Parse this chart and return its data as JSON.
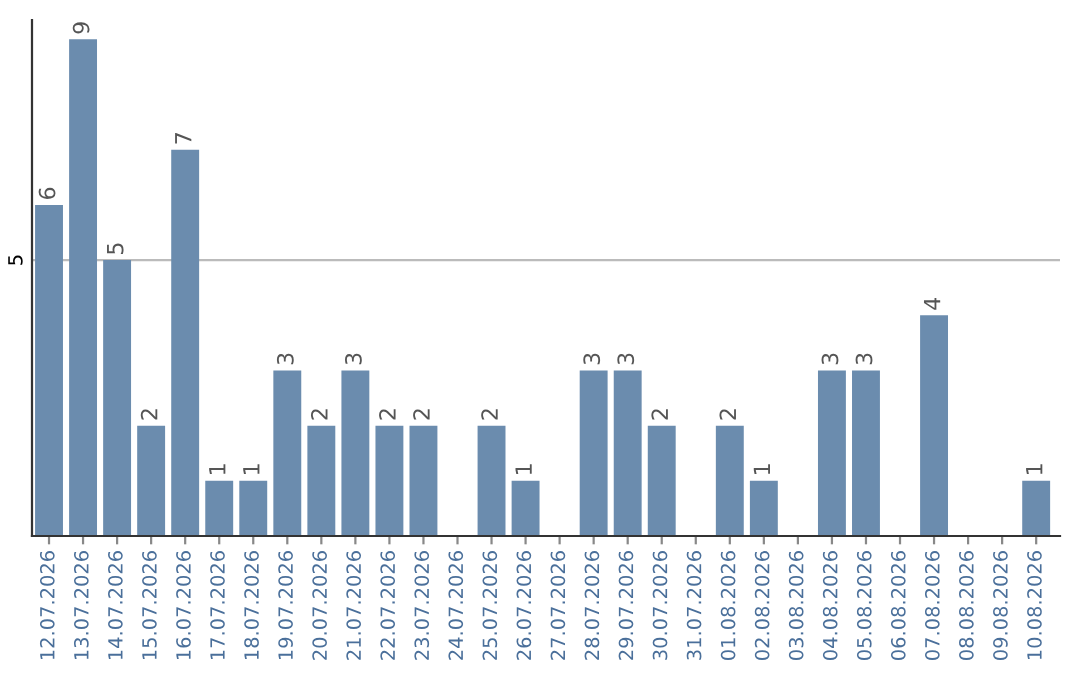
{
  "chart_data": {
    "type": "bar",
    "categories": [
      "12.07.2026",
      "13.07.2026",
      "14.07.2026",
      "15.07.2026",
      "16.07.2026",
      "17.07.2026",
      "18.07.2026",
      "19.07.2026",
      "20.07.2026",
      "21.07.2026",
      "22.07.2026",
      "23.07.2026",
      "24.07.2026",
      "25.07.2026",
      "26.07.2026",
      "27.07.2026",
      "28.07.2026",
      "29.07.2026",
      "30.07.2026",
      "31.07.2026",
      "01.08.2026",
      "02.08.2026",
      "03.08.2026",
      "04.08.2026",
      "05.08.2026",
      "06.08.2026",
      "07.08.2026",
      "08.08.2026",
      "09.08.2026",
      "10.08.2026"
    ],
    "values": [
      6,
      9,
      5,
      2,
      7,
      1,
      1,
      3,
      2,
      3,
      2,
      2,
      0,
      2,
      1,
      0,
      3,
      3,
      2,
      0,
      2,
      1,
      0,
      3,
      3,
      0,
      4,
      0,
      0,
      1
    ],
    "value_labels": [
      "6",
      "9",
      "5",
      "2",
      "7",
      "1",
      "1",
      "3",
      "2",
      "3",
      "2",
      "2",
      null,
      "2",
      "1",
      null,
      "3",
      "3",
      "2",
      null,
      "2",
      "1",
      null,
      "3",
      "3",
      null,
      "4",
      null,
      null,
      "1"
    ],
    "color": "#6b8cae",
    "ylim": [
      0,
      9.35
    ],
    "yticks": [
      5
    ],
    "grid": "y"
  }
}
